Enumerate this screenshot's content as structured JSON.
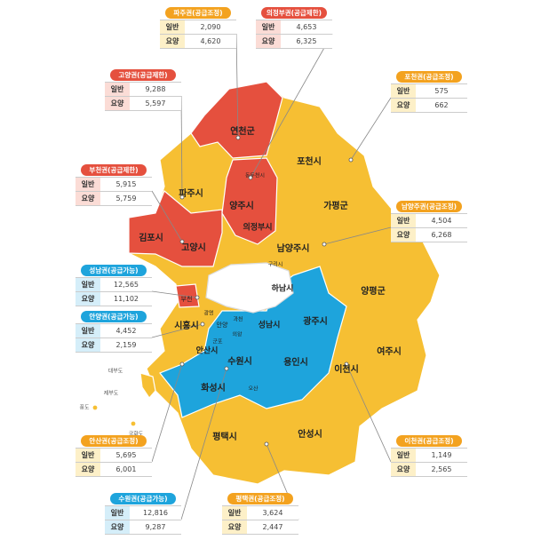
{
  "regions": [
    {
      "title": "파주권(공급조정)",
      "status": "adjust",
      "general_label": "일반",
      "general": "2,090",
      "care_label": "요양",
      "care": "4,620"
    },
    {
      "title": "의정부권(공급제한)",
      "status": "limit",
      "general_label": "일반",
      "general": "4,653",
      "care_label": "요양",
      "care": "6,325"
    },
    {
      "title": "고양권(공급제한)",
      "status": "limit",
      "general_label": "일반",
      "general": "9,288",
      "care_label": "요양",
      "care": "5,597"
    },
    {
      "title": "포천권(공급조정)",
      "status": "adjust",
      "general_label": "일반",
      "general": "575",
      "care_label": "요양",
      "care": "662"
    },
    {
      "title": "부천권(공급제한)",
      "status": "limit",
      "general_label": "일반",
      "general": "5,915",
      "care_label": "요양",
      "care": "5,759"
    },
    {
      "title": "남양주권(공급조정)",
      "status": "adjust",
      "general_label": "일반",
      "general": "4,504",
      "care_label": "요양",
      "care": "6,268"
    },
    {
      "title": "성남권(공급가능)",
      "status": "open",
      "general_label": "일반",
      "general": "12,565",
      "care_label": "요양",
      "care": "11,102"
    },
    {
      "title": "안양권(공급가능)",
      "status": "open",
      "general_label": "일반",
      "general": "4,452",
      "care_label": "요양",
      "care": "2,159"
    },
    {
      "title": "안산권(공급조정)",
      "status": "adjust",
      "general_label": "일반",
      "general": "5,695",
      "care_label": "요양",
      "care": "6,001"
    },
    {
      "title": "이천권(공급조정)",
      "status": "adjust",
      "general_label": "일반",
      "general": "1,149",
      "care_label": "요양",
      "care": "2,565"
    },
    {
      "title": "수원권(공급가능)",
      "status": "open",
      "general_label": "일반",
      "general": "12,816",
      "care_label": "요양",
      "care": "9,287"
    },
    {
      "title": "평택권(공급조정)",
      "status": "adjust",
      "general_label": "일반",
      "general": "3,624",
      "care_label": "요양",
      "care": "2,447"
    }
  ],
  "cities": [
    "연천군",
    "포천시",
    "파주시",
    "동두천시",
    "양주시",
    "가평군",
    "의정부시",
    "김포시",
    "고양시",
    "남양주시",
    "구리시",
    "하남시",
    "양평군",
    "부천",
    "광명",
    "과천",
    "시흥시",
    "성남시",
    "광주시",
    "안양",
    "의왕",
    "군포",
    "안산시",
    "수원시",
    "여주시",
    "용인시",
    "이천시",
    "화성시",
    "오산",
    "평택시",
    "안성시",
    "대부도",
    "제부도",
    "풍도",
    "국화도"
  ]
}
